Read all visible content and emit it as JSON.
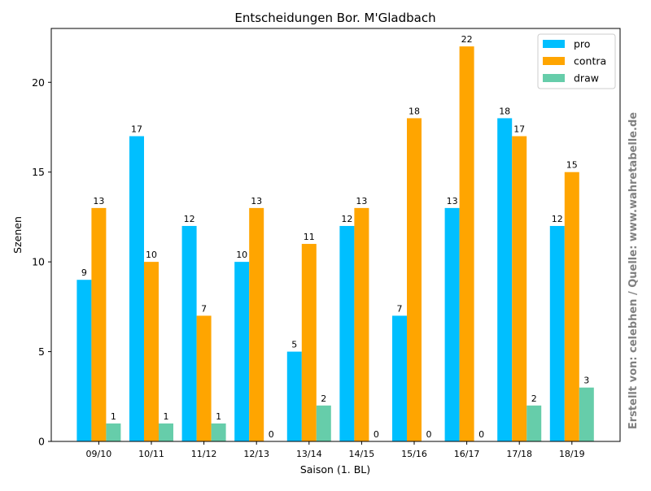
{
  "chart_data": {
    "type": "bar",
    "title": "Entscheidungen Bor. M'Gladbach",
    "xlabel": "Saison (1. BL)",
    "ylabel": "Szenen",
    "categories": [
      "09/10",
      "10/11",
      "11/12",
      "12/13",
      "13/14",
      "14/15",
      "15/16",
      "16/17",
      "17/18",
      "18/19"
    ],
    "series": [
      {
        "name": "pro",
        "color": "#00bfff",
        "values": [
          9,
          17,
          12,
          10,
          5,
          12,
          7,
          13,
          18,
          12
        ]
      },
      {
        "name": "contra",
        "color": "#ffa500",
        "values": [
          13,
          10,
          7,
          13,
          11,
          13,
          18,
          22,
          17,
          15
        ]
      },
      {
        "name": "draw",
        "color": "#66cdaa",
        "values": [
          1,
          1,
          1,
          0,
          2,
          0,
          0,
          0,
          2,
          3
        ]
      }
    ],
    "ylim": [
      0,
      23
    ],
    "yticks": [
      0,
      5,
      10,
      15,
      20
    ],
    "grid": false,
    "legend_position": "top-right",
    "watermark": "Erstellt von: celebhen / Quelle: www.wahretabelle.de"
  }
}
